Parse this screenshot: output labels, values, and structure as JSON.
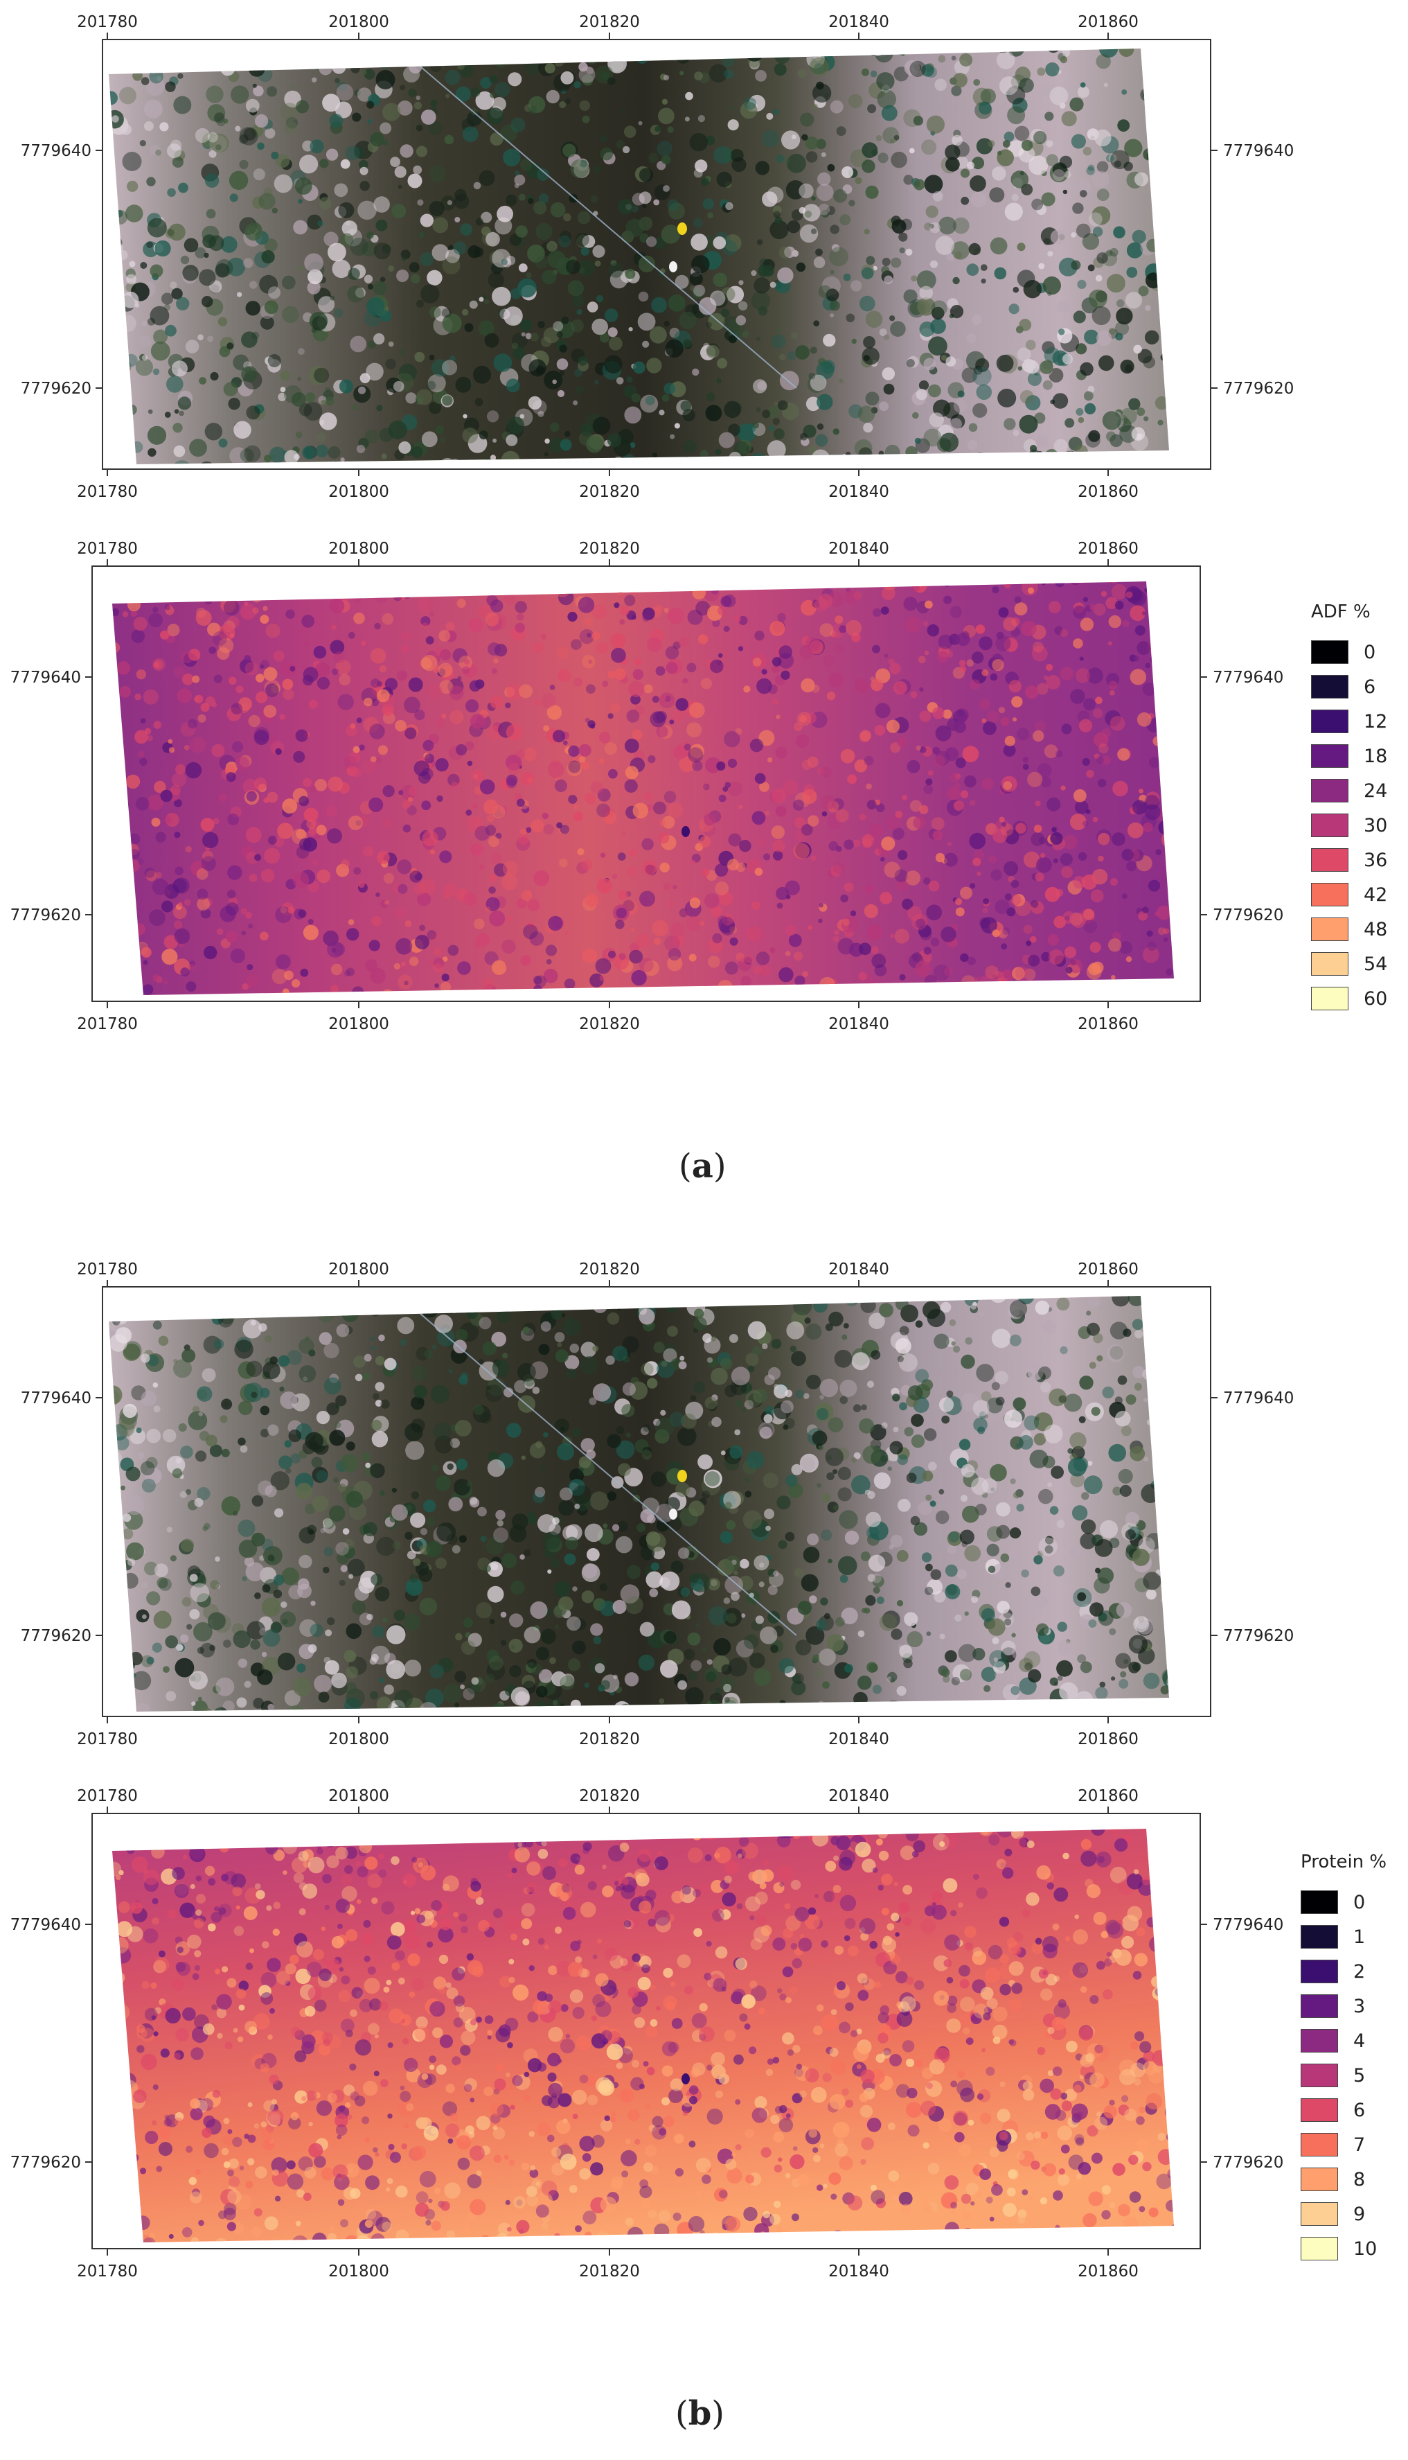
{
  "panels": [
    {
      "id": "a",
      "caption_open": "(",
      "caption_letter": "a",
      "caption_close": ")",
      "maps": [
        {
          "name": "rgb",
          "render": "rgb",
          "x_ticks": [
            "201780",
            "201800",
            "201820",
            "201840",
            "201860"
          ],
          "y_ticks": [
            "7779640",
            "7779620"
          ]
        },
        {
          "name": "adf",
          "render": "magma",
          "x_ticks": [
            "201780",
            "201800",
            "201820",
            "201840",
            "201860"
          ],
          "y_ticks": [
            "7779640",
            "7779620"
          ]
        }
      ],
      "legend": {
        "title": "ADF %",
        "entries": [
          {
            "label": "0",
            "color": "#000004"
          },
          {
            "label": "6",
            "color": "#140e36"
          },
          {
            "label": "12",
            "color": "#3b0f70"
          },
          {
            "label": "18",
            "color": "#641a80"
          },
          {
            "label": "24",
            "color": "#8c2981"
          },
          {
            "label": "30",
            "color": "#b73779"
          },
          {
            "label": "36",
            "color": "#de4968"
          },
          {
            "label": "42",
            "color": "#f7705c"
          },
          {
            "label": "48",
            "color": "#fe9f6d"
          },
          {
            "label": "54",
            "color": "#fecf92"
          },
          {
            "label": "60",
            "color": "#fcfdbf"
          }
        ]
      }
    },
    {
      "id": "b",
      "caption_open": "(",
      "caption_letter": "b",
      "caption_close": ")",
      "maps": [
        {
          "name": "rgb",
          "render": "rgb",
          "x_ticks": [
            "201780",
            "201800",
            "201820",
            "201840",
            "201860"
          ],
          "y_ticks": [
            "7779640",
            "7779620"
          ]
        },
        {
          "name": "protein",
          "render": "magma-bright",
          "x_ticks": [
            "201780",
            "201800",
            "201820",
            "201840",
            "201860"
          ],
          "y_ticks": [
            "7779640",
            "7779620"
          ]
        }
      ],
      "legend": {
        "title": "Protein %",
        "entries": [
          {
            "label": "0",
            "color": "#000004"
          },
          {
            "label": "1",
            "color": "#140e36"
          },
          {
            "label": "2",
            "color": "#3b0f70"
          },
          {
            "label": "3",
            "color": "#641a80"
          },
          {
            "label": "4",
            "color": "#8c2981"
          },
          {
            "label": "5",
            "color": "#b73779"
          },
          {
            "label": "6",
            "color": "#de4968"
          },
          {
            "label": "7",
            "color": "#f7705c"
          },
          {
            "label": "8",
            "color": "#fe9f6d"
          },
          {
            "label": "9",
            "color": "#fecf92"
          },
          {
            "label": "10",
            "color": "#fcfdbf"
          }
        ]
      }
    }
  ]
}
